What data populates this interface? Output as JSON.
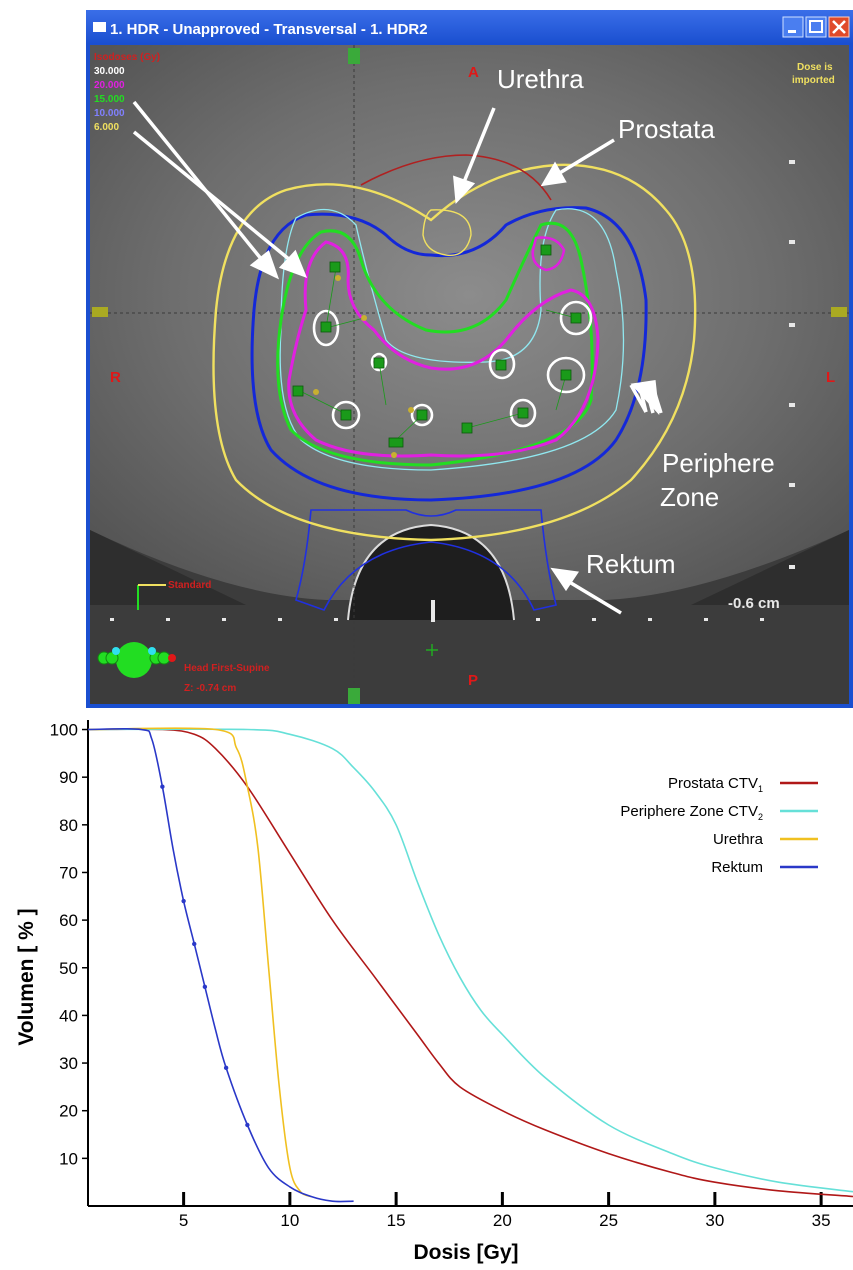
{
  "window": {
    "title": "1. HDR  -  Unapproved - Transversal - 1. HDR2",
    "controls": [
      "minimize",
      "maximize",
      "close"
    ]
  },
  "isodose_legend": {
    "title": "Isodoses (Gy)",
    "levels": [
      {
        "value": "30.000",
        "color": "#ffffff"
      },
      {
        "value": "20.000",
        "color": "#e020e0"
      },
      {
        "value": "15.000",
        "color": "#22dd22"
      },
      {
        "value": "10.000",
        "color": "#3333ff"
      },
      {
        "value": "6.000",
        "color": "#f0e060"
      }
    ]
  },
  "orientation": {
    "anterior": "A",
    "posterior": "P",
    "right": "R",
    "left": "L"
  },
  "dose_status": {
    "line1": "Dose is",
    "line2": "imported"
  },
  "annotations": {
    "urethra": "Urethra",
    "prostata": "Prostata",
    "periphere_line1": "Periphere",
    "periphere_line2": "Zone",
    "rektum": "Rektum"
  },
  "scale_label": "-0.6 cm",
  "standard_label": "Standard",
  "patient": {
    "position": "Head First-Supine",
    "z": "Z: -0.74 cm"
  },
  "colors": {
    "isodose_30": "#ffffff",
    "isodose_20": "#e020e0",
    "isodose_15": "#22dd22",
    "isodose_10": "#1428d8",
    "isodose_6": "#f0e060",
    "prostata_contour": "#b02020",
    "periphere_contour": "#90e8f0",
    "rektum_contour": "#2030e0",
    "urethra_contour": "#f0e060",
    "titlebar": "#1a4fd0"
  },
  "chart_data": {
    "type": "line",
    "xlabel": "Dosis [Gy]",
    "ylabel": "Volumen [ % ]",
    "xlim": [
      0.5,
      36.5
    ],
    "ylim": [
      0,
      102
    ],
    "xticks": [
      5,
      10,
      15,
      20,
      25,
      30,
      35
    ],
    "yticks": [
      10,
      20,
      30,
      40,
      50,
      60,
      70,
      80,
      90,
      100
    ],
    "legend_position": "top-right",
    "series": [
      {
        "name": "Prostata CTV",
        "subscript": "1",
        "color": "#b01818",
        "x": [
          0.5,
          4,
          5.5,
          6.5,
          8,
          10,
          12,
          14,
          16,
          17,
          18,
          20,
          22,
          25,
          28,
          30,
          33,
          36.5
        ],
        "y": [
          100,
          100,
          99,
          96,
          88,
          74,
          60,
          48,
          36,
          30,
          25,
          20,
          16,
          11,
          7,
          5,
          3.2,
          2
        ]
      },
      {
        "name": "Periphere Zone CTV",
        "subscript": "2",
        "color": "#66e0d8",
        "x": [
          0.5,
          8,
          10,
          12,
          13,
          14,
          15,
          16,
          17,
          18,
          19,
          20,
          22,
          25,
          28,
          30,
          33,
          36.5
        ],
        "y": [
          100,
          100,
          99,
          96,
          92,
          87,
          80,
          68,
          57,
          48,
          41,
          36,
          27,
          17,
          11,
          8,
          5,
          3
        ]
      },
      {
        "name": "Urethra",
        "color": "#f0c020",
        "x": [
          0.5,
          6.5,
          7.5,
          8,
          8.5,
          9,
          9.5,
          10,
          10.5,
          11
        ],
        "y": [
          100,
          100,
          96,
          88,
          75,
          50,
          25,
          8,
          3,
          2
        ]
      },
      {
        "name": "Rektum",
        "color": "#2a38c8",
        "x": [
          0.5,
          3,
          3.5,
          4,
          4.5,
          5,
          5.5,
          6,
          6.5,
          7,
          8,
          9,
          10,
          11,
          12,
          13
        ],
        "y": [
          100,
          100,
          98,
          88,
          75,
          64,
          55,
          46,
          37,
          29,
          17,
          8,
          4,
          2,
          1,
          1
        ]
      }
    ]
  }
}
